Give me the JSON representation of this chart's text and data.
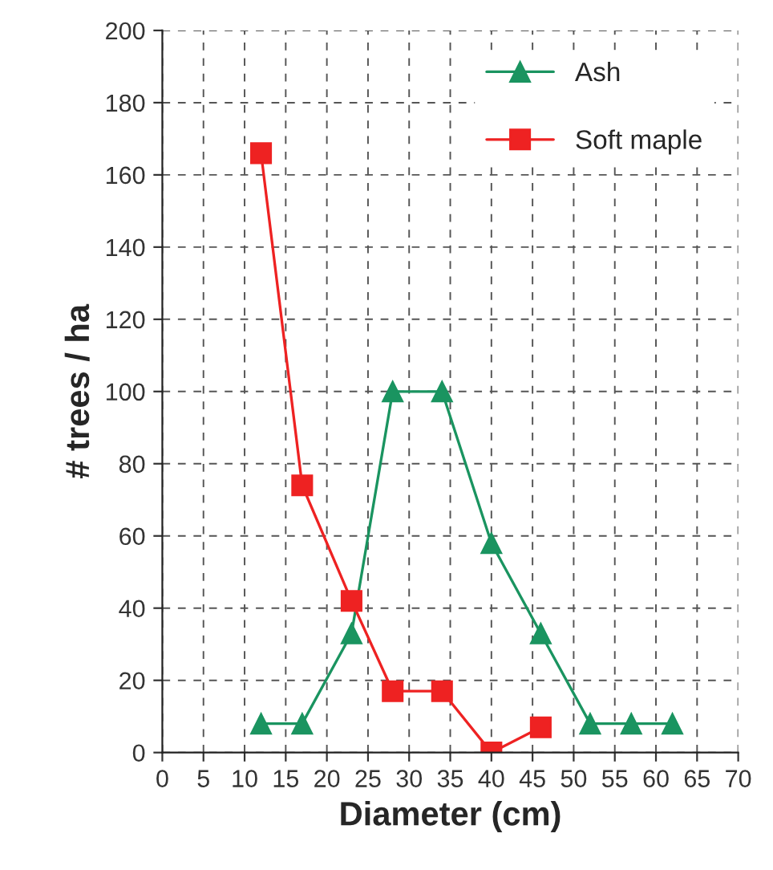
{
  "chart_data": {
    "type": "line",
    "xlabel": "Diameter (cm)",
    "ylabel": "# trees / ha",
    "xlim": [
      0,
      70
    ],
    "xticks": [
      0,
      5,
      10,
      15,
      20,
      25,
      30,
      35,
      40,
      45,
      50,
      55,
      60,
      65,
      70
    ],
    "ylim": [
      0,
      200
    ],
    "yticks": [
      0,
      20,
      40,
      60,
      80,
      100,
      120,
      140,
      160,
      180,
      200
    ],
    "grid": true,
    "legend": "top right",
    "line_style": "solid",
    "series": [
      {
        "name": "Ash",
        "color": "#1a9460",
        "marker": "triangle",
        "x": [
          12,
          17,
          23,
          28,
          34,
          40,
          46,
          52,
          57,
          62
        ],
        "values": [
          8,
          8,
          33,
          100,
          100,
          58,
          33,
          8,
          8,
          8
        ]
      },
      {
        "name": "Soft maple",
        "color": "#ee2222",
        "marker": "square",
        "x": [
          12,
          17,
          23,
          28,
          34,
          40,
          46
        ],
        "values": [
          166,
          74,
          42,
          17,
          17,
          0,
          7
        ]
      }
    ]
  }
}
